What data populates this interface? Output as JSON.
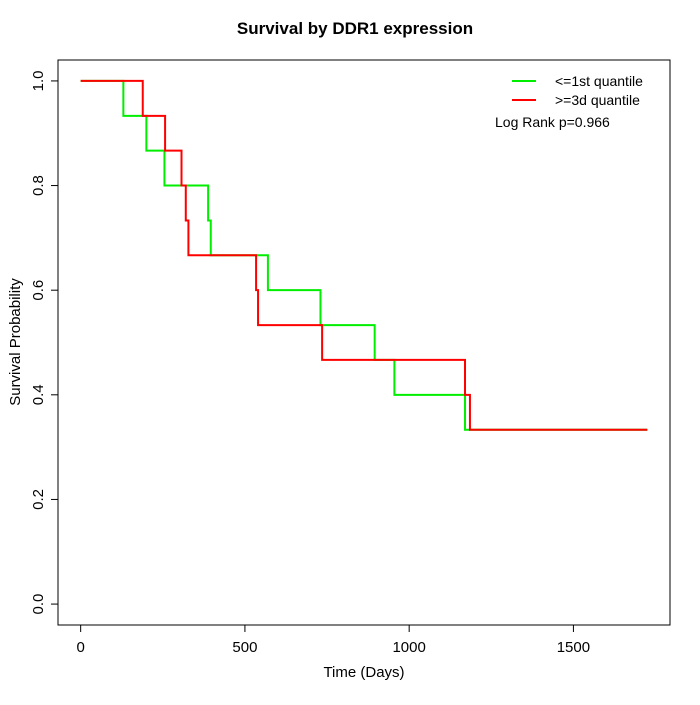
{
  "page": {
    "background": "#ffffff",
    "text_color": "#000000"
  },
  "chart_data": {
    "type": "line",
    "subtype": "kaplan-meier-step",
    "title": "Survival by DDR1 expression",
    "xlabel": "Time (Days)",
    "ylabel": "Survival Probability",
    "xlim": [
      0,
      1725
    ],
    "ylim": [
      0,
      1
    ],
    "axis_padding_fraction": 0.04,
    "x_ticks": [
      0,
      500,
      1000,
      1500
    ],
    "x_tick_labels": [
      "0",
      "500",
      "1000",
      "1500"
    ],
    "y_ticks": [
      0.0,
      0.2,
      0.4,
      0.6,
      0.8,
      1.0
    ],
    "y_tick_labels": [
      "0.0",
      "0.2",
      "0.4",
      "0.6",
      "0.8",
      "1.0"
    ],
    "grid": false,
    "box": true,
    "legend_position": "top-right-inside",
    "line_width": 2,
    "series": [
      {
        "name": "<=1st quantile",
        "color": "#00EE00",
        "end_time": 1725,
        "points": [
          [
            0,
            1.0
          ],
          [
            130,
            0.9333
          ],
          [
            200,
            0.8667
          ],
          [
            255,
            0.8
          ],
          [
            388,
            0.7333
          ],
          [
            396,
            0.6667
          ],
          [
            570,
            0.6
          ],
          [
            730,
            0.5333
          ],
          [
            895,
            0.4667
          ],
          [
            955,
            0.4
          ],
          [
            1170,
            0.3333
          ]
        ]
      },
      {
        "name": ">=3d quantile",
        "color": "#FF0000",
        "end_time": 1725,
        "points": [
          [
            0,
            1.0
          ],
          [
            189,
            0.9333
          ],
          [
            257,
            0.8667
          ],
          [
            307,
            0.8
          ],
          [
            320,
            0.7333
          ],
          [
            328,
            0.6667
          ],
          [
            534,
            0.6
          ],
          [
            540,
            0.5333
          ],
          [
            735,
            0.4667
          ],
          [
            1170,
            0.4
          ],
          [
            1185,
            0.3333
          ]
        ]
      }
    ],
    "annotation": "Log Rank p=0.966"
  }
}
